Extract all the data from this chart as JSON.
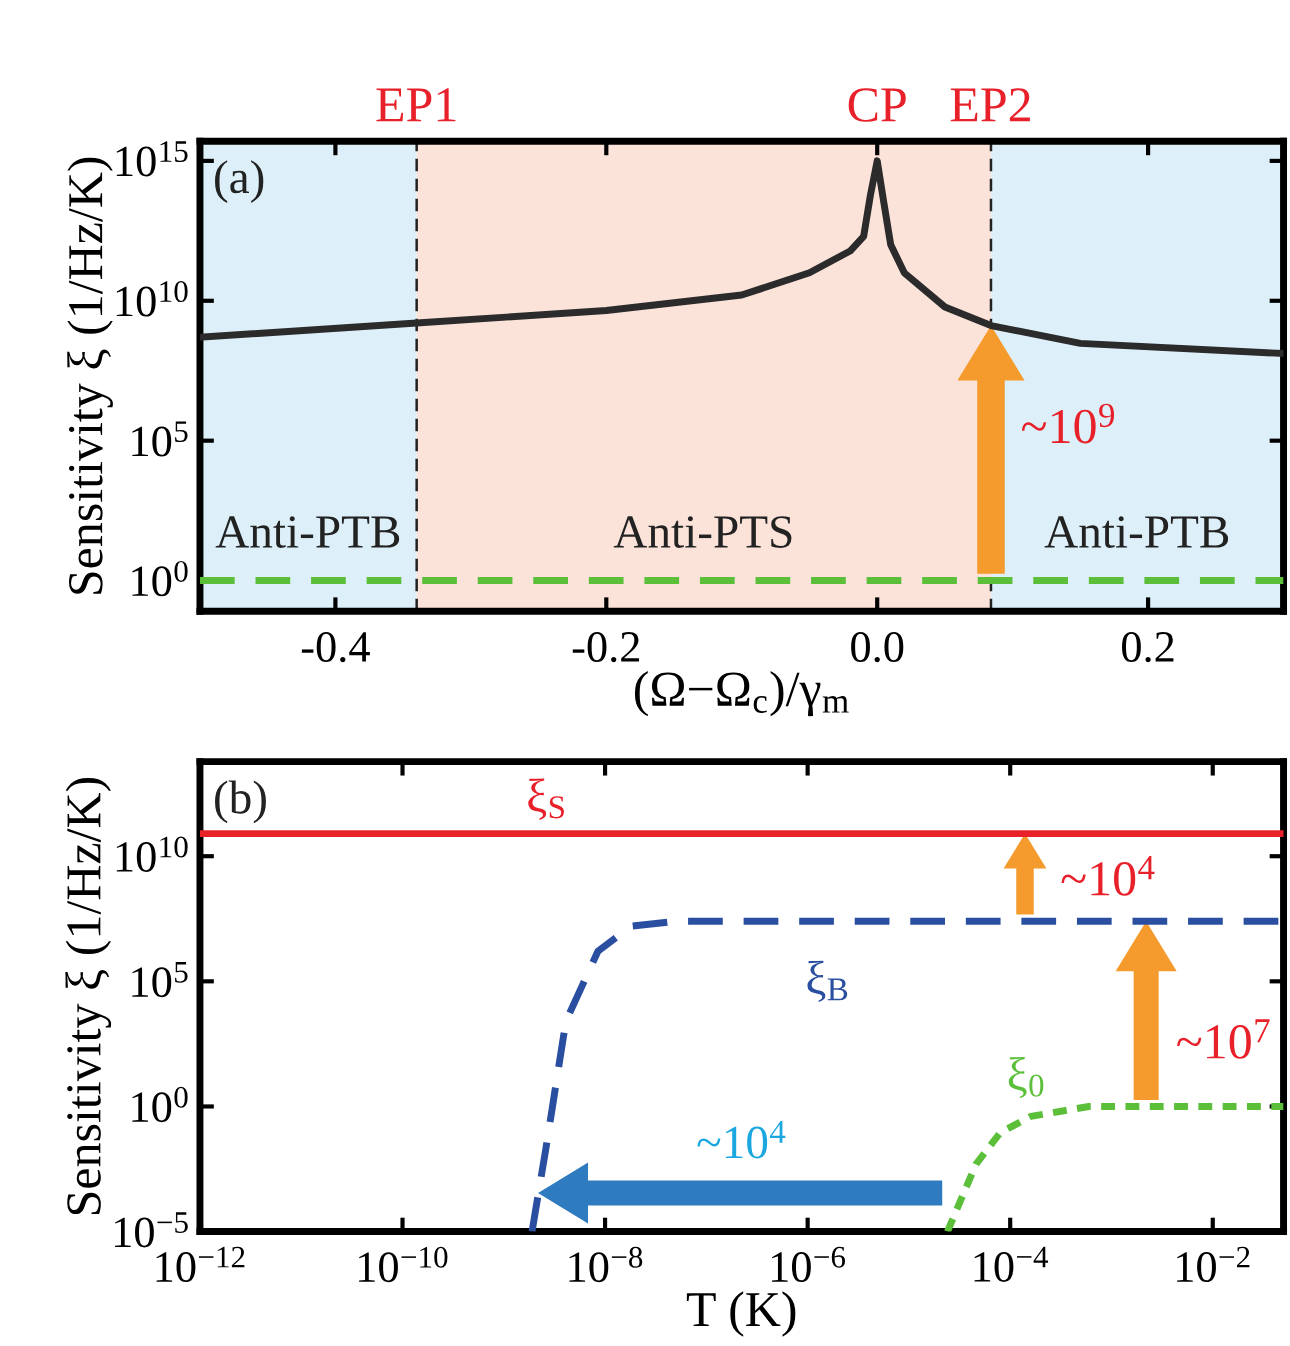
{
  "chart_data": [
    {
      "type": "line",
      "xlabel": "(Ω−Ω$_{c}$)/γ$_{m}$",
      "ylabel": "Sensitivity ξ (1/Hz/K)",
      "log": "y",
      "xlim": [
        -0.5,
        0.3
      ],
      "xticks": [
        -0.4,
        -0.2,
        {
          "value": 0,
          "label": "0.0"
        },
        0.2
      ],
      "ylim": [
        0.08,
        5000000000000000.0
      ],
      "yticks": [
        {
          "value": 1,
          "label": "10$^{0}$"
        },
        {
          "value": 100000.0,
          "label": "10$^{5}$"
        },
        {
          "value": 10000000000.0,
          "label": "10$^{10}$"
        },
        {
          "value": 1000000000000000.0,
          "label": "10$^{15}$"
        }
      ],
      "series": [
        {
          "color": "#2b2b2b",
          "line_style": "solid",
          "x": [
            -0.5,
            -0.34,
            -0.2,
            -0.1,
            -0.05,
            -0.02,
            -0.01,
            -0.005,
            0,
            0.005,
            0.01,
            0.02,
            0.05,
            0.084,
            0.15,
            0.3
          ],
          "values": [
            500000000.0,
            1600000000.0,
            4500000000.0,
            16000000000.0,
            100000000000.0,
            600000000000.0,
            2000000000000.0,
            60000000000000.0,
            1000000000000000.0,
            30000000000000.0,
            1000000000000.0,
            100000000000.0,
            6000000000.0,
            1300000000.0,
            300000000.0,
            130000000.0
          ]
        },
        {
          "color": "#5cbf3a",
          "line_style": "dashed",
          "x": [
            -0.5,
            0.3
          ],
          "values": [
            1,
            1
          ]
        }
      ],
      "bands": [
        {
          "axis": "x",
          "from": -0.5,
          "to": -0.34,
          "label": "Anti-PTB",
          "color": "#ddf0f9"
        },
        {
          "axis": "x",
          "from": -0.34,
          "to": 0.084,
          "label": "Anti-PTS",
          "color": "#fbe3da"
        },
        {
          "axis": "x",
          "from": 0.084,
          "to": 0.3,
          "label": "Anti-PTB",
          "color": "#ddf0f9"
        }
      ],
      "ref_lines": [
        {
          "axis": "x",
          "value": -0.34,
          "label": "EP1",
          "color": "#222222",
          "line_style": "dashed"
        },
        {
          "axis": "x",
          "value": 0.084,
          "label": "EP2",
          "color": "#222222",
          "line_style": "dashed"
        }
      ],
      "annotations": [
        "(a)",
        {
          "text": "CP",
          "x": 0,
          "y": 1000000000000000.0
        },
        {
          "text": "~10$^{9}$",
          "x": 0.084,
          "y": 1300000000.0
        }
      ]
    },
    {
      "type": "line",
      "xlabel": "T (K)",
      "ylabel": "Sensitivity ξ (1/Hz/K)",
      "log": "xy",
      "xlim": [
        1e-12,
        0.05
      ],
      "xticks": [
        {
          "value": 1e-12,
          "label": "10$^{−12}$"
        },
        {
          "value": 1e-10,
          "label": "10$^{−10}$"
        },
        {
          "value": 1e-08,
          "label": "10$^{−8}$"
        },
        {
          "value": 1e-06,
          "label": "10$^{−6}$"
        },
        {
          "value": 0.0001,
          "label": "10$^{−4}$"
        },
        {
          "value": 0.01,
          "label": "10$^{−2}$"
        }
      ],
      "ylim": [
        1e-05,
        60000000000000.0
      ],
      "yticks": [
        {
          "value": 1e-05,
          "label": "10$^{−5}$"
        },
        {
          "value": 1,
          "label": "10$^{0}$"
        },
        {
          "value": 100000.0,
          "label": "10$^{5}$"
        },
        {
          "value": 10000000000.0,
          "label": "10$^{10}$"
        }
      ],
      "series": [
        {
          "name": "ξ$_{S}$",
          "color": "#e8202a",
          "line_style": "solid",
          "x": [
            1e-12,
            0.05
          ],
          "values": [
            80000000000.0,
            80000000000.0
          ]
        },
        {
          "name": "ξ$_{B}$",
          "color": "#2a4fa0",
          "line_style": "dashed",
          "x": [
            1.9e-09,
            2.6e-09,
            4.1e-09,
            8.5e-09,
            1.8e-08,
            5e-08,
            0.05
          ],
          "values": [
            1e-05,
            0.02,
            2500,
            1600000.0,
            16000000.0,
            25000000.0,
            25000000.0
          ]
        },
        {
          "name": "ξ$_{0}$",
          "color": "#5cbf3a",
          "line_style": "dotted",
          "x": [
            2.4e-05,
            4.6e-05,
            8e-05,
            0.00016,
            0.0006,
            0.05
          ],
          "values": [
            1e-05,
            0.005,
            0.09,
            0.4,
            1,
            1
          ]
        }
      ],
      "annotations": [
        "(b)",
        {
          "text": "~10$^{4}$",
          "x": 0.00014,
          "y": 80000000000.0
        },
        {
          "text": "~10$^{7}$",
          "x": 0.0022,
          "y": 25000000.0
        },
        "~10$^{4}$"
      ]
    }
  ]
}
